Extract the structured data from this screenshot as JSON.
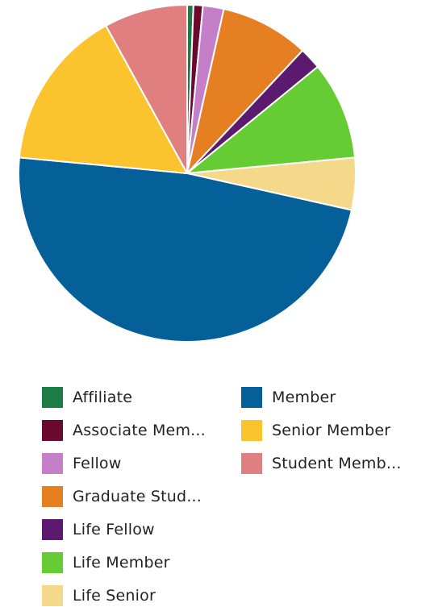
{
  "chart_data": {
    "type": "pie",
    "title": "",
    "slices": [
      {
        "label": "Affiliate",
        "value": 0.6,
        "color": "#1b7c45"
      },
      {
        "label": "Associate Mem...",
        "value": 0.9,
        "color": "#6b0a2e"
      },
      {
        "label": "Fellow",
        "value": 2.0,
        "color": "#c47fc8"
      },
      {
        "label": "Graduate Stud...",
        "value": 8.5,
        "color": "#e67e22"
      },
      {
        "label": "Life Fellow",
        "value": 2.1,
        "color": "#5b1a6e"
      },
      {
        "label": "Life Member",
        "value": 9.4,
        "color": "#66cc33"
      },
      {
        "label": "Life Senior",
        "value": 5.0,
        "color": "#f5d98b"
      },
      {
        "label": "Member",
        "value": 48.0,
        "color": "#05609a"
      },
      {
        "label": "Senior Member",
        "value": 15.5,
        "color": "#fbc42f"
      },
      {
        "label": "Student Memb...",
        "value": 8.0,
        "color": "#e07f7f"
      }
    ],
    "legend_position": "bottom"
  }
}
